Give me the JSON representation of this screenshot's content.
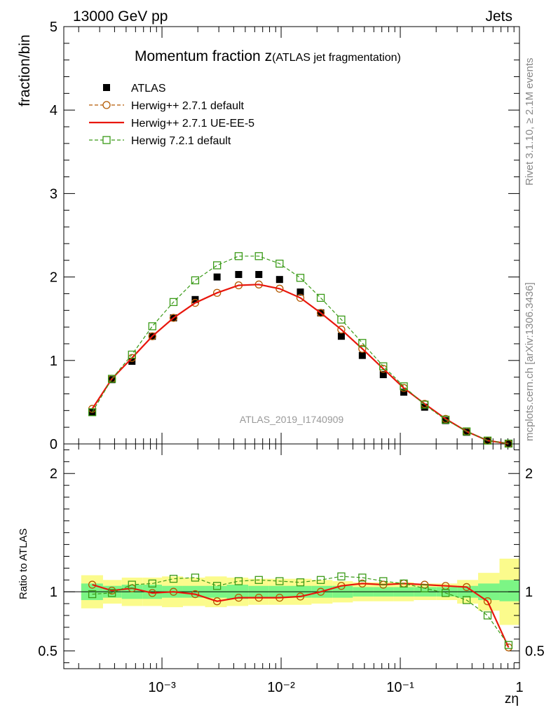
{
  "header": {
    "left": "13000 GeV pp",
    "right": "Jets"
  },
  "side_labels": {
    "rivet": "Rivet 3.1.10, ≥ 2.1M events",
    "mcplots": "mcplots.cern.ch [arXiv:1306.3436]"
  },
  "chart_data": [
    {
      "type": "scatter",
      "title_main": "Momentum fraction z",
      "title_sub": "(ATLAS jet fragmentation)",
      "ylabel": "fraction/bin",
      "watermark": "ATLAS_2019_I1740909",
      "xscale": "log",
      "xlim": [
        0.00015,
        1
      ],
      "ylim": [
        0,
        5
      ],
      "y_ticks": [
        "0",
        "1",
        "2",
        "3",
        "4",
        "5"
      ],
      "legend_position": "top-left",
      "x": [
        0.00026,
        0.00038,
        0.00056,
        0.00083,
        0.00125,
        0.0019,
        0.0029,
        0.0044,
        0.0065,
        0.0097,
        0.0145,
        0.0215,
        0.032,
        0.048,
        0.072,
        0.107,
        0.16,
        0.24,
        0.36,
        0.54,
        0.81
      ],
      "series": [
        {
          "name": "ATLAS",
          "color": "#000000",
          "marker": "filled-square",
          "line": "none",
          "values": [
            0.38,
            0.77,
            0.99,
            1.29,
            1.51,
            1.73,
            2.0,
            2.03,
            2.03,
            1.97,
            1.82,
            1.57,
            1.29,
            1.06,
            0.83,
            0.62,
            0.44,
            0.28,
            0.14,
            0.04,
            0.006
          ]
        },
        {
          "name": "Herwig++ 2.7.1 default",
          "color": "#b35900",
          "marker": "open-circle",
          "line": "dashed",
          "values": [
            0.42,
            0.78,
            1.03,
            1.29,
            1.51,
            1.69,
            1.81,
            1.9,
            1.91,
            1.86,
            1.75,
            1.57,
            1.37,
            1.14,
            0.9,
            0.67,
            0.48,
            0.3,
            0.15,
            0.04,
            0.003
          ]
        },
        {
          "name": "Herwig++ 2.7.1 UE-EE-5",
          "color": "#e8160c",
          "marker": "none",
          "line": "solid",
          "values": [
            0.42,
            0.78,
            1.03,
            1.29,
            1.51,
            1.69,
            1.81,
            1.9,
            1.91,
            1.86,
            1.75,
            1.57,
            1.37,
            1.14,
            0.9,
            0.67,
            0.48,
            0.3,
            0.15,
            0.04,
            0.003
          ]
        },
        {
          "name": "Herwig 7.2.1 default",
          "color": "#3a9a17",
          "marker": "open-square",
          "line": "dashed",
          "values": [
            0.38,
            0.78,
            1.07,
            1.41,
            1.7,
            1.96,
            2.14,
            2.25,
            2.25,
            2.16,
            1.99,
            1.75,
            1.49,
            1.21,
            0.93,
            0.69,
            0.47,
            0.29,
            0.15,
            0.04,
            0.004
          ]
        }
      ]
    },
    {
      "type": "line",
      "ylabel": "Ratio to ATLAS",
      "xlabel": "zη",
      "xscale": "log",
      "xlim": [
        0.00015,
        1
      ],
      "ylim": [
        0.35,
        2.25
      ],
      "y_ticks": [
        "0.5",
        "1",
        "2"
      ],
      "x_ticks": [
        "10⁻³",
        "10⁻²",
        "10⁻¹",
        "1"
      ],
      "reference": 1,
      "bands": {
        "inner_color": "#7cf585",
        "outer_color": "#fbfb8c",
        "bin_edges": [
          0.00021,
          0.00032,
          0.00046,
          0.00069,
          0.001,
          0.0015,
          0.0023,
          0.0035,
          0.0053,
          0.0079,
          0.012,
          0.018,
          0.027,
          0.04,
          0.059,
          0.088,
          0.13,
          0.2,
          0.3,
          0.45,
          0.68,
          1.0
        ],
        "inner_lo": [
          0.93,
          0.95,
          0.94,
          0.94,
          0.95,
          0.95,
          0.95,
          0.94,
          0.95,
          0.95,
          0.95,
          0.95,
          0.95,
          0.96,
          0.96,
          0.96,
          0.96,
          0.96,
          0.95,
          0.93,
          0.92
        ],
        "inner_hi": [
          1.07,
          1.05,
          1.06,
          1.06,
          1.05,
          1.05,
          1.05,
          1.06,
          1.05,
          1.05,
          1.05,
          1.05,
          1.05,
          1.04,
          1.04,
          1.04,
          1.04,
          1.04,
          1.05,
          1.07,
          1.1
        ],
        "outer_lo": [
          0.86,
          0.9,
          0.88,
          0.88,
          0.87,
          0.88,
          0.87,
          0.88,
          0.89,
          0.89,
          0.89,
          0.9,
          0.91,
          0.92,
          0.92,
          0.92,
          0.93,
          0.93,
          0.9,
          0.84,
          0.72
        ],
        "outer_hi": [
          1.14,
          1.1,
          1.12,
          1.12,
          1.13,
          1.12,
          1.13,
          1.12,
          1.11,
          1.11,
          1.11,
          1.1,
          1.09,
          1.08,
          1.08,
          1.08,
          1.07,
          1.07,
          1.1,
          1.16,
          1.28
        ]
      },
      "x": [
        0.00026,
        0.00038,
        0.00056,
        0.00083,
        0.00125,
        0.0019,
        0.0029,
        0.0044,
        0.0065,
        0.0097,
        0.0145,
        0.0215,
        0.032,
        0.048,
        0.072,
        0.107,
        0.16,
        0.24,
        0.36,
        0.54,
        0.81
      ],
      "series": [
        {
          "name": "Herwig++ 2.7.1 default",
          "color": "#b35900",
          "marker": "open-circle",
          "line": "dashed",
          "values": [
            1.06,
            1.01,
            1.03,
            0.99,
            1.0,
            0.98,
            0.92,
            0.95,
            0.95,
            0.95,
            0.96,
            1.0,
            1.05,
            1.07,
            1.06,
            1.07,
            1.06,
            1.05,
            1.04,
            0.92,
            0.53
          ]
        },
        {
          "name": "Herwig++ 2.7.1 UE-EE-5",
          "color": "#e8160c",
          "marker": "none",
          "line": "solid",
          "values": [
            1.06,
            1.01,
            1.03,
            0.99,
            1.0,
            0.98,
            0.92,
            0.95,
            0.95,
            0.95,
            0.96,
            1.0,
            1.05,
            1.07,
            1.06,
            1.07,
            1.06,
            1.05,
            1.04,
            0.92,
            0.53
          ]
        },
        {
          "name": "Herwig 7.2.1 default",
          "color": "#3a9a17",
          "marker": "open-square",
          "line": "dashed",
          "values": [
            0.98,
            0.99,
            1.06,
            1.07,
            1.11,
            1.12,
            1.05,
            1.09,
            1.1,
            1.09,
            1.08,
            1.1,
            1.13,
            1.12,
            1.09,
            1.07,
            1.03,
            0.99,
            0.93,
            0.8,
            0.55
          ]
        }
      ]
    }
  ]
}
